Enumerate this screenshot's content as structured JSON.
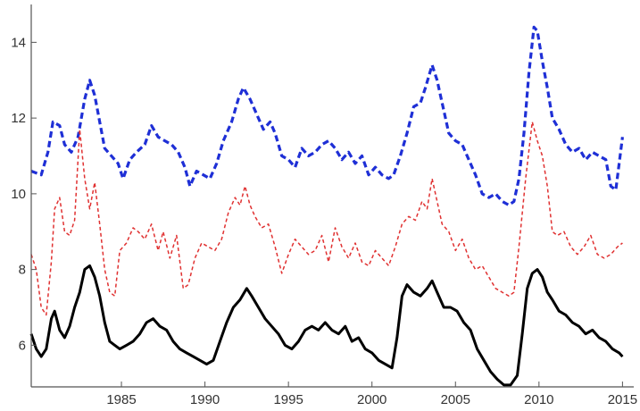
{
  "chart_data": {
    "type": "line",
    "title": "",
    "xlabel": "",
    "ylabel": "",
    "xlim": [
      1979.6,
      2015.3
    ],
    "ylim": [
      4.9,
      15.0
    ],
    "x_ticks": [
      {
        "value": 1985,
        "label": "1985"
      },
      {
        "value": 1990,
        "label": "1990"
      },
      {
        "value": 1995,
        "label": "1995"
      },
      {
        "value": 2000,
        "label": "2000"
      },
      {
        "value": 2005,
        "label": "2005"
      },
      {
        "value": 2010,
        "label": "2010"
      },
      {
        "value": 2015,
        "label": "2015"
      }
    ],
    "y_ticks": [
      {
        "value": 6,
        "label": "6"
      },
      {
        "value": 8,
        "label": "8"
      },
      {
        "value": 10,
        "label": "10"
      },
      {
        "value": 12,
        "label": "12"
      },
      {
        "value": 14,
        "label": "14"
      }
    ],
    "grid": false,
    "legend": "none",
    "series": [
      {
        "color": "#1e2fd6",
        "style": "dashed-thick",
        "points": [
          [
            1979.6,
            10.6
          ],
          [
            1980.2,
            10.5
          ],
          [
            1980.6,
            11.1
          ],
          [
            1980.9,
            11.9
          ],
          [
            1981.3,
            11.8
          ],
          [
            1981.6,
            11.3
          ],
          [
            1982.0,
            11.1
          ],
          [
            1982.4,
            11.5
          ],
          [
            1982.8,
            12.5
          ],
          [
            1983.1,
            13.0
          ],
          [
            1983.4,
            12.6
          ],
          [
            1983.7,
            11.9
          ],
          [
            1984.0,
            11.2
          ],
          [
            1984.4,
            11.0
          ],
          [
            1984.8,
            10.8
          ],
          [
            1985.1,
            10.4
          ],
          [
            1985.5,
            10.9
          ],
          [
            1985.9,
            11.1
          ],
          [
            1986.4,
            11.3
          ],
          [
            1986.8,
            11.8
          ],
          [
            1987.2,
            11.5
          ],
          [
            1987.6,
            11.4
          ],
          [
            1988.0,
            11.3
          ],
          [
            1988.4,
            11.1
          ],
          [
            1988.8,
            10.7
          ],
          [
            1989.1,
            10.2
          ],
          [
            1989.5,
            10.6
          ],
          [
            1989.9,
            10.5
          ],
          [
            1990.3,
            10.4
          ],
          [
            1990.7,
            10.8
          ],
          [
            1991.1,
            11.4
          ],
          [
            1991.6,
            11.9
          ],
          [
            1992.0,
            12.5
          ],
          [
            1992.3,
            12.8
          ],
          [
            1992.7,
            12.5
          ],
          [
            1993.1,
            12.1
          ],
          [
            1993.5,
            11.7
          ],
          [
            1993.9,
            11.9
          ],
          [
            1994.2,
            11.6
          ],
          [
            1994.6,
            11.0
          ],
          [
            1995.0,
            10.9
          ],
          [
            1995.4,
            10.7
          ],
          [
            1995.8,
            11.2
          ],
          [
            1996.2,
            11.0
          ],
          [
            1996.6,
            11.1
          ],
          [
            1997.0,
            11.3
          ],
          [
            1997.4,
            11.4
          ],
          [
            1997.8,
            11.2
          ],
          [
            1998.2,
            10.9
          ],
          [
            1998.6,
            11.1
          ],
          [
            1999.0,
            10.8
          ],
          [
            1999.4,
            11.0
          ],
          [
            1999.8,
            10.5
          ],
          [
            2000.2,
            10.7
          ],
          [
            2000.6,
            10.5
          ],
          [
            2001.0,
            10.4
          ],
          [
            2001.3,
            10.5
          ],
          [
            2001.7,
            11.0
          ],
          [
            2002.1,
            11.6
          ],
          [
            2002.5,
            12.3
          ],
          [
            2002.9,
            12.4
          ],
          [
            2003.2,
            12.8
          ],
          [
            2003.6,
            13.4
          ],
          [
            2003.9,
            13.0
          ],
          [
            2004.3,
            12.2
          ],
          [
            2004.6,
            11.6
          ],
          [
            2005.0,
            11.4
          ],
          [
            2005.4,
            11.3
          ],
          [
            2005.8,
            10.9
          ],
          [
            2006.2,
            10.5
          ],
          [
            2006.6,
            10.0
          ],
          [
            2007.0,
            9.9
          ],
          [
            2007.4,
            10.0
          ],
          [
            2007.8,
            9.8
          ],
          [
            2008.2,
            9.7
          ],
          [
            2008.5,
            9.8
          ],
          [
            2008.8,
            10.4
          ],
          [
            2009.1,
            11.6
          ],
          [
            2009.4,
            13.2
          ],
          [
            2009.7,
            14.4
          ],
          [
            2009.9,
            14.3
          ],
          [
            2010.2,
            13.5
          ],
          [
            2010.5,
            12.8
          ],
          [
            2010.8,
            12.0
          ],
          [
            2011.2,
            11.7
          ],
          [
            2011.6,
            11.3
          ],
          [
            2012.0,
            11.1
          ],
          [
            2012.4,
            11.2
          ],
          [
            2012.8,
            10.9
          ],
          [
            2013.2,
            11.1
          ],
          [
            2013.6,
            11.0
          ],
          [
            2014.0,
            10.9
          ],
          [
            2014.3,
            10.2
          ],
          [
            2014.6,
            10.1
          ],
          [
            2015.0,
            11.5
          ]
        ]
      },
      {
        "color": "#e03131",
        "style": "dashed-thin",
        "points": [
          [
            1979.6,
            8.4
          ],
          [
            1979.9,
            8.0
          ],
          [
            1980.2,
            7.0
          ],
          [
            1980.5,
            6.8
          ],
          [
            1980.8,
            8.2
          ],
          [
            1981.0,
            9.6
          ],
          [
            1981.3,
            9.9
          ],
          [
            1981.6,
            9.0
          ],
          [
            1981.9,
            8.9
          ],
          [
            1982.2,
            9.3
          ],
          [
            1982.5,
            11.7
          ],
          [
            1982.8,
            10.4
          ],
          [
            1983.1,
            9.6
          ],
          [
            1983.4,
            10.3
          ],
          [
            1983.7,
            9.2
          ],
          [
            1984.0,
            8.0
          ],
          [
            1984.3,
            7.4
          ],
          [
            1984.6,
            7.3
          ],
          [
            1984.9,
            8.5
          ],
          [
            1985.3,
            8.7
          ],
          [
            1985.7,
            9.1
          ],
          [
            1986.0,
            9.0
          ],
          [
            1986.4,
            8.8
          ],
          [
            1986.8,
            9.2
          ],
          [
            1987.2,
            8.5
          ],
          [
            1987.5,
            9.0
          ],
          [
            1987.9,
            8.3
          ],
          [
            1988.3,
            8.9
          ],
          [
            1988.7,
            7.5
          ],
          [
            1989.0,
            7.6
          ],
          [
            1989.4,
            8.3
          ],
          [
            1989.8,
            8.7
          ],
          [
            1990.2,
            8.6
          ],
          [
            1990.6,
            8.5
          ],
          [
            1991.0,
            8.8
          ],
          [
            1991.4,
            9.5
          ],
          [
            1991.8,
            9.9
          ],
          [
            1992.1,
            9.7
          ],
          [
            1992.4,
            10.2
          ],
          [
            1992.7,
            9.7
          ],
          [
            1993.0,
            9.4
          ],
          [
            1993.4,
            9.1
          ],
          [
            1993.8,
            9.2
          ],
          [
            1994.2,
            8.6
          ],
          [
            1994.6,
            7.9
          ],
          [
            1995.0,
            8.4
          ],
          [
            1995.4,
            8.8
          ],
          [
            1995.8,
            8.6
          ],
          [
            1996.2,
            8.4
          ],
          [
            1996.6,
            8.5
          ],
          [
            1997.0,
            8.9
          ],
          [
            1997.4,
            8.2
          ],
          [
            1997.8,
            9.1
          ],
          [
            1998.2,
            8.6
          ],
          [
            1998.6,
            8.3
          ],
          [
            1999.0,
            8.7
          ],
          [
            1999.4,
            8.2
          ],
          [
            1999.8,
            8.1
          ],
          [
            2000.2,
            8.5
          ],
          [
            2000.6,
            8.3
          ],
          [
            2001.0,
            8.1
          ],
          [
            2001.4,
            8.6
          ],
          [
            2001.8,
            9.2
          ],
          [
            2002.2,
            9.4
          ],
          [
            2002.6,
            9.3
          ],
          [
            2003.0,
            9.8
          ],
          [
            2003.3,
            9.6
          ],
          [
            2003.6,
            10.4
          ],
          [
            2003.9,
            9.8
          ],
          [
            2004.2,
            9.2
          ],
          [
            2004.6,
            9.0
          ],
          [
            2005.0,
            8.5
          ],
          [
            2005.4,
            8.8
          ],
          [
            2005.8,
            8.3
          ],
          [
            2006.2,
            8.0
          ],
          [
            2006.6,
            8.1
          ],
          [
            2007.0,
            7.8
          ],
          [
            2007.4,
            7.5
          ],
          [
            2007.8,
            7.4
          ],
          [
            2008.2,
            7.3
          ],
          [
            2008.5,
            7.4
          ],
          [
            2008.8,
            8.6
          ],
          [
            2009.2,
            10.4
          ],
          [
            2009.6,
            11.9
          ],
          [
            2009.9,
            11.4
          ],
          [
            2010.2,
            11.0
          ],
          [
            2010.5,
            10.2
          ],
          [
            2010.8,
            9.0
          ],
          [
            2011.1,
            8.9
          ],
          [
            2011.5,
            9.0
          ],
          [
            2011.9,
            8.6
          ],
          [
            2012.3,
            8.4
          ],
          [
            2012.7,
            8.6
          ],
          [
            2013.1,
            8.9
          ],
          [
            2013.5,
            8.4
          ],
          [
            2013.9,
            8.3
          ],
          [
            2014.3,
            8.4
          ],
          [
            2014.7,
            8.6
          ],
          [
            2015.0,
            8.7
          ]
        ]
      },
      {
        "color": "#000000",
        "style": "solid",
        "points": [
          [
            1979.6,
            6.3
          ],
          [
            1979.9,
            5.9
          ],
          [
            1980.2,
            5.7
          ],
          [
            1980.5,
            5.9
          ],
          [
            1980.8,
            6.7
          ],
          [
            1981.0,
            6.9
          ],
          [
            1981.3,
            6.4
          ],
          [
            1981.6,
            6.2
          ],
          [
            1981.9,
            6.5
          ],
          [
            1982.2,
            7.0
          ],
          [
            1982.5,
            7.4
          ],
          [
            1982.8,
            8.0
          ],
          [
            1983.1,
            8.1
          ],
          [
            1983.4,
            7.8
          ],
          [
            1983.7,
            7.3
          ],
          [
            1984.0,
            6.6
          ],
          [
            1984.3,
            6.1
          ],
          [
            1984.6,
            6.0
          ],
          [
            1984.9,
            5.9
          ],
          [
            1985.3,
            6.0
          ],
          [
            1985.7,
            6.1
          ],
          [
            1986.1,
            6.3
          ],
          [
            1986.5,
            6.6
          ],
          [
            1986.9,
            6.7
          ],
          [
            1987.3,
            6.5
          ],
          [
            1987.7,
            6.4
          ],
          [
            1988.1,
            6.1
          ],
          [
            1988.5,
            5.9
          ],
          [
            1988.9,
            5.8
          ],
          [
            1989.3,
            5.7
          ],
          [
            1989.7,
            5.6
          ],
          [
            1990.1,
            5.5
          ],
          [
            1990.5,
            5.6
          ],
          [
            1990.9,
            6.1
          ],
          [
            1991.3,
            6.6
          ],
          [
            1991.7,
            7.0
          ],
          [
            1992.1,
            7.2
          ],
          [
            1992.5,
            7.5
          ],
          [
            1992.8,
            7.3
          ],
          [
            1993.2,
            7.0
          ],
          [
            1993.6,
            6.7
          ],
          [
            1994.0,
            6.5
          ],
          [
            1994.4,
            6.3
          ],
          [
            1994.8,
            6.0
          ],
          [
            1995.2,
            5.9
          ],
          [
            1995.6,
            6.1
          ],
          [
            1996.0,
            6.4
          ],
          [
            1996.4,
            6.5
          ],
          [
            1996.8,
            6.4
          ],
          [
            1997.2,
            6.6
          ],
          [
            1997.6,
            6.4
          ],
          [
            1998.0,
            6.3
          ],
          [
            1998.4,
            6.5
          ],
          [
            1998.8,
            6.1
          ],
          [
            1999.2,
            6.2
          ],
          [
            1999.6,
            5.9
          ],
          [
            2000.0,
            5.8
          ],
          [
            2000.4,
            5.6
          ],
          [
            2000.8,
            5.5
          ],
          [
            2001.2,
            5.4
          ],
          [
            2001.5,
            6.2
          ],
          [
            2001.8,
            7.3
          ],
          [
            2002.1,
            7.6
          ],
          [
            2002.5,
            7.4
          ],
          [
            2002.9,
            7.3
          ],
          [
            2003.3,
            7.5
          ],
          [
            2003.6,
            7.7
          ],
          [
            2003.9,
            7.4
          ],
          [
            2004.3,
            7.0
          ],
          [
            2004.7,
            7.0
          ],
          [
            2005.1,
            6.9
          ],
          [
            2005.5,
            6.6
          ],
          [
            2005.9,
            6.4
          ],
          [
            2006.3,
            5.9
          ],
          [
            2006.7,
            5.6
          ],
          [
            2007.1,
            5.3
          ],
          [
            2007.5,
            5.1
          ],
          [
            2007.9,
            4.95
          ],
          [
            2008.3,
            4.95
          ],
          [
            2008.7,
            5.2
          ],
          [
            2009.0,
            6.3
          ],
          [
            2009.3,
            7.5
          ],
          [
            2009.6,
            7.9
          ],
          [
            2009.9,
            8.0
          ],
          [
            2010.2,
            7.8
          ],
          [
            2010.5,
            7.4
          ],
          [
            2010.8,
            7.2
          ],
          [
            2011.2,
            6.9
          ],
          [
            2011.6,
            6.8
          ],
          [
            2012.0,
            6.6
          ],
          [
            2012.4,
            6.5
          ],
          [
            2012.8,
            6.3
          ],
          [
            2013.2,
            6.4
          ],
          [
            2013.6,
            6.2
          ],
          [
            2014.0,
            6.1
          ],
          [
            2014.4,
            5.9
          ],
          [
            2014.8,
            5.8
          ],
          [
            2015.0,
            5.7
          ]
        ]
      }
    ]
  }
}
